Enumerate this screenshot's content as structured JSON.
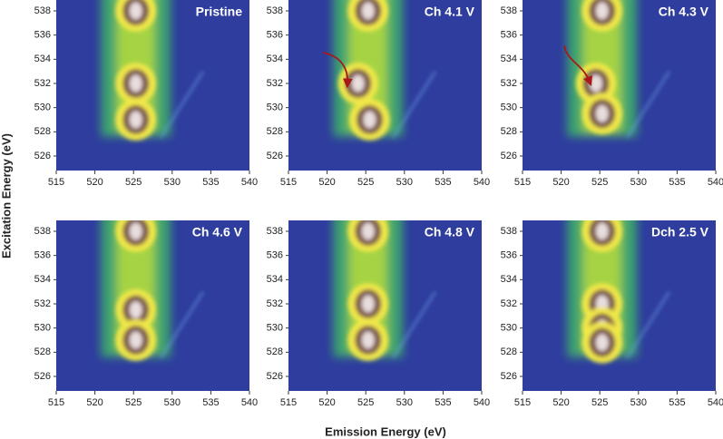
{
  "xlabel": "Emission Energy (eV)",
  "ylabel": "Excitation Energy (eV)",
  "chart_data": [
    {
      "type": "heatmap",
      "title": "Pristine",
      "xlim": [
        515,
        540
      ],
      "xticks": [
        515,
        520,
        525,
        530,
        535,
        540
      ],
      "ylim": [
        524.8,
        538.9
      ],
      "yticks": [
        526,
        528,
        530,
        532,
        534,
        536,
        538
      ],
      "peaks": [
        {
          "x": 525.3,
          "y": 538
        },
        {
          "x": 525.3,
          "y": 532
        },
        {
          "x": 525.3,
          "y": 529
        }
      ]
    },
    {
      "type": "heatmap",
      "title": "Ch 4.1 V",
      "xlim": [
        515,
        540
      ],
      "xticks": [
        515,
        520,
        525,
        530,
        535,
        540
      ],
      "ylim": [
        524.8,
        538.9
      ],
      "yticks": [
        526,
        528,
        530,
        532,
        534,
        536,
        538
      ],
      "peaks": [
        {
          "x": 525.3,
          "y": 538
        },
        {
          "x": 524,
          "y": 532
        },
        {
          "x": 525.5,
          "y": 529
        }
      ]
    },
    {
      "type": "heatmap",
      "title": "Ch 4.3 V",
      "xlim": [
        515,
        540
      ],
      "xticks": [
        515,
        520,
        525,
        530,
        535,
        540
      ],
      "ylim": [
        524.8,
        538.9
      ],
      "yticks": [
        526,
        528,
        530,
        532,
        534,
        536,
        538
      ],
      "peaks": [
        {
          "x": 525.3,
          "y": 538
        },
        {
          "x": 524.5,
          "y": 532
        },
        {
          "x": 525.3,
          "y": 529.5
        }
      ]
    },
    {
      "type": "heatmap",
      "title": "Ch 4.6 V",
      "xlim": [
        515,
        540
      ],
      "xticks": [
        515,
        520,
        525,
        530,
        535,
        540
      ],
      "ylim": [
        524.8,
        538.9
      ],
      "yticks": [
        526,
        528,
        530,
        532,
        534,
        536,
        538
      ],
      "peaks": [
        {
          "x": 525.3,
          "y": 538
        },
        {
          "x": 525.3,
          "y": 531.5
        },
        {
          "x": 525.3,
          "y": 529
        }
      ]
    },
    {
      "type": "heatmap",
      "title": "Ch 4.8 V",
      "xlim": [
        515,
        540
      ],
      "xticks": [
        515,
        520,
        525,
        530,
        535,
        540
      ],
      "ylim": [
        524.8,
        538.9
      ],
      "yticks": [
        526,
        528,
        530,
        532,
        534,
        536,
        538
      ],
      "peaks": [
        {
          "x": 525.3,
          "y": 538
        },
        {
          "x": 525.3,
          "y": 532
        },
        {
          "x": 525.3,
          "y": 529
        }
      ]
    },
    {
      "type": "heatmap",
      "title": "Dch 2.5 V",
      "xlim": [
        515,
        540
      ],
      "xticks": [
        515,
        520,
        525,
        530,
        535,
        540
      ],
      "ylim": [
        524.8,
        538.9
      ],
      "yticks": [
        526,
        528,
        530,
        532,
        534,
        536,
        538
      ],
      "peaks": [
        {
          "x": 525.3,
          "y": 538
        },
        {
          "x": 525.3,
          "y": 532
        },
        {
          "x": 525.3,
          "y": 530
        },
        {
          "x": 525.3,
          "y": 528.8
        }
      ]
    }
  ]
}
